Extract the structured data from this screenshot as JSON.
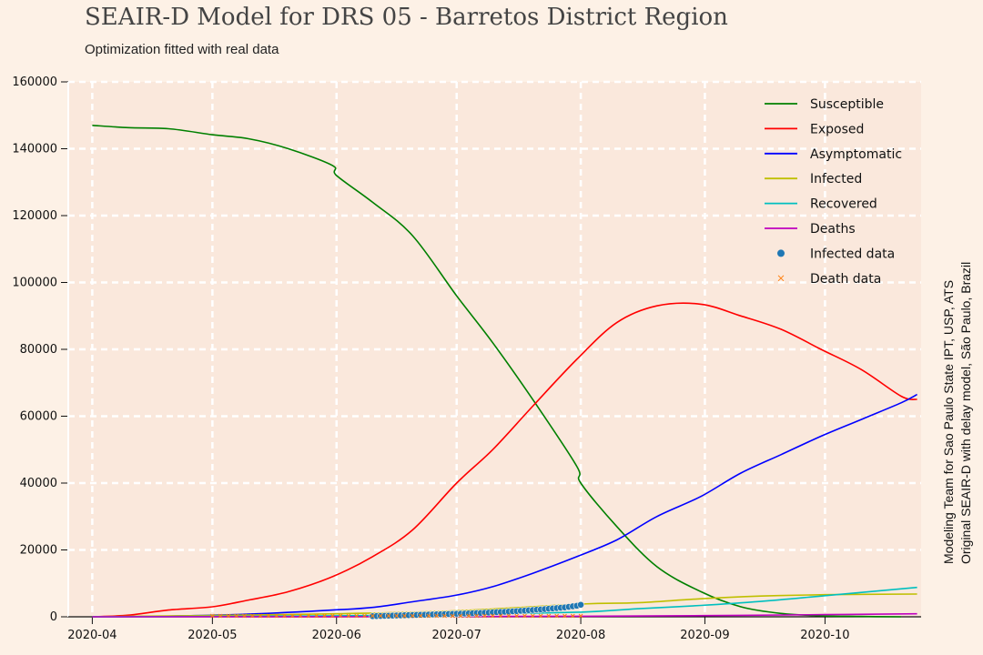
{
  "header": {
    "title": "SEAIR-D Model for DRS 05 - Barretos District Region",
    "subtitle": "Optimization fitted with real data"
  },
  "credits": {
    "line1": "Modeling Team for Sao Paulo State IPT, USP, ATS",
    "line2": "Original SEAIR-D with delay model, São Paulo, Brazil"
  },
  "colors": {
    "background": "#fdf1e6",
    "plot_bg": "#fae8dc",
    "grid": "#ffffff"
  },
  "chart_data": {
    "type": "line",
    "title": "SEAIR-D Model for DRS 05 - Barretos District Region",
    "subtitle": "Optimization fitted with real data",
    "xlabel": "",
    "ylabel": "",
    "x_range": [
      "2020-03-26",
      "2020-10-25"
    ],
    "ylim": [
      0,
      160000
    ],
    "grid": true,
    "grid_style": "dashed",
    "legend_position": "top-right",
    "x_ticks": [
      "2020-04",
      "2020-05",
      "2020-06",
      "2020-07",
      "2020-08",
      "2020-09",
      "2020-10"
    ],
    "y_ticks": [
      0,
      20000,
      40000,
      60000,
      80000,
      100000,
      120000,
      140000,
      160000
    ],
    "series": [
      {
        "name": "Susceptible",
        "color": "#008000",
        "kind": "line",
        "points": [
          [
            "2020-04-01",
            147000
          ],
          [
            "2020-04-10",
            146300
          ],
          [
            "2020-04-20",
            146000
          ],
          [
            "2020-05-01",
            144200
          ],
          [
            "2020-05-10",
            143000
          ],
          [
            "2020-05-20",
            140000
          ],
          [
            "2020-05-31",
            135000
          ],
          [
            "2020-06-01",
            132000
          ],
          [
            "2020-06-10",
            124000
          ],
          [
            "2020-06-20",
            114000
          ],
          [
            "2020-07-01",
            96000
          ],
          [
            "2020-07-10",
            82000
          ],
          [
            "2020-07-20",
            65000
          ],
          [
            "2020-07-31",
            45000
          ],
          [
            "2020-08-01",
            40000
          ],
          [
            "2020-08-10",
            27000
          ],
          [
            "2020-08-20",
            15000
          ],
          [
            "2020-08-31",
            7500
          ],
          [
            "2020-09-10",
            3000
          ],
          [
            "2020-09-20",
            1000
          ],
          [
            "2020-09-30",
            300
          ],
          [
            "2020-10-10",
            100
          ],
          [
            "2020-10-20",
            0
          ]
        ]
      },
      {
        "name": "Exposed",
        "color": "#ff0000",
        "kind": "line",
        "points": [
          [
            "2020-04-01",
            0
          ],
          [
            "2020-04-10",
            500
          ],
          [
            "2020-04-20",
            2000
          ],
          [
            "2020-05-01",
            3000
          ],
          [
            "2020-05-10",
            5000
          ],
          [
            "2020-05-20",
            7500
          ],
          [
            "2020-05-31",
            12000
          ],
          [
            "2020-06-10",
            18000
          ],
          [
            "2020-06-20",
            26000
          ],
          [
            "2020-07-01",
            40000
          ],
          [
            "2020-07-10",
            50000
          ],
          [
            "2020-07-20",
            63000
          ],
          [
            "2020-07-31",
            77000
          ],
          [
            "2020-08-10",
            88000
          ],
          [
            "2020-08-20",
            93000
          ],
          [
            "2020-08-31",
            93500
          ],
          [
            "2020-09-10",
            90000
          ],
          [
            "2020-09-20",
            86000
          ],
          [
            "2020-09-30",
            80000
          ],
          [
            "2020-10-10",
            74000
          ],
          [
            "2020-10-20",
            66000
          ],
          [
            "2020-10-24",
            65000
          ]
        ]
      },
      {
        "name": "Asymptomatic",
        "color": "#0000ff",
        "kind": "line",
        "points": [
          [
            "2020-04-01",
            0
          ],
          [
            "2020-04-20",
            200
          ],
          [
            "2020-05-10",
            800
          ],
          [
            "2020-05-31",
            2000
          ],
          [
            "2020-06-10",
            2800
          ],
          [
            "2020-06-20",
            4500
          ],
          [
            "2020-07-01",
            6500
          ],
          [
            "2020-07-10",
            9000
          ],
          [
            "2020-07-20",
            13000
          ],
          [
            "2020-07-31",
            18000
          ],
          [
            "2020-08-10",
            23000
          ],
          [
            "2020-08-20",
            30000
          ],
          [
            "2020-08-31",
            36000
          ],
          [
            "2020-09-10",
            43000
          ],
          [
            "2020-09-20",
            48500
          ],
          [
            "2020-09-30",
            54000
          ],
          [
            "2020-10-10",
            59000
          ],
          [
            "2020-10-20",
            64000
          ],
          [
            "2020-10-24",
            66500
          ]
        ]
      },
      {
        "name": "Infected",
        "color": "#bfbf00",
        "kind": "line",
        "points": [
          [
            "2020-04-01",
            0
          ],
          [
            "2020-05-01",
            400
          ],
          [
            "2020-06-01",
            900
          ],
          [
            "2020-07-01",
            1800
          ],
          [
            "2020-08-01",
            3800
          ],
          [
            "2020-08-15",
            4200
          ],
          [
            "2020-08-31",
            5400
          ],
          [
            "2020-09-15",
            6200
          ],
          [
            "2020-10-01",
            6600
          ],
          [
            "2020-10-24",
            6800
          ]
        ]
      },
      {
        "name": "Recovered",
        "color": "#00bfbf",
        "kind": "line",
        "points": [
          [
            "2020-04-01",
            0
          ],
          [
            "2020-05-01",
            100
          ],
          [
            "2020-06-01",
            300
          ],
          [
            "2020-07-01",
            700
          ],
          [
            "2020-08-01",
            1400
          ],
          [
            "2020-08-15",
            2400
          ],
          [
            "2020-08-31",
            3400
          ],
          [
            "2020-09-15",
            4600
          ],
          [
            "2020-10-01",
            6300
          ],
          [
            "2020-10-24",
            8800
          ]
        ]
      },
      {
        "name": "Deaths",
        "color": "#bf00bf",
        "kind": "line",
        "points": [
          [
            "2020-04-01",
            0
          ],
          [
            "2020-06-01",
            30
          ],
          [
            "2020-08-01",
            150
          ],
          [
            "2020-09-01",
            350
          ],
          [
            "2020-10-01",
            650
          ],
          [
            "2020-10-24",
            900
          ]
        ]
      },
      {
        "name": "Infected data",
        "color": "#1f77b4",
        "kind": "scatter-dot",
        "points": [
          [
            "2020-06-10",
            200
          ],
          [
            "2020-06-13",
            300
          ],
          [
            "2020-06-16",
            400
          ],
          [
            "2020-06-19",
            500
          ],
          [
            "2020-06-22",
            600
          ],
          [
            "2020-06-25",
            700
          ],
          [
            "2020-06-28",
            800
          ],
          [
            "2020-07-01",
            900
          ],
          [
            "2020-07-04",
            1000
          ],
          [
            "2020-07-07",
            1150
          ],
          [
            "2020-07-10",
            1300
          ],
          [
            "2020-07-13",
            1500
          ],
          [
            "2020-07-16",
            1700
          ],
          [
            "2020-07-19",
            1950
          ],
          [
            "2020-07-22",
            2200
          ],
          [
            "2020-07-25",
            2500
          ],
          [
            "2020-07-28",
            2800
          ],
          [
            "2020-07-31",
            3300
          ],
          [
            "2020-08-01",
            3600
          ]
        ]
      },
      {
        "name": "Death data",
        "color": "#ff7f0e",
        "kind": "scatter-x",
        "points": [
          [
            "2020-05-01",
            0
          ],
          [
            "2020-06-01",
            20
          ],
          [
            "2020-07-01",
            60
          ],
          [
            "2020-07-15",
            90
          ],
          [
            "2020-08-01",
            130
          ]
        ]
      }
    ]
  }
}
